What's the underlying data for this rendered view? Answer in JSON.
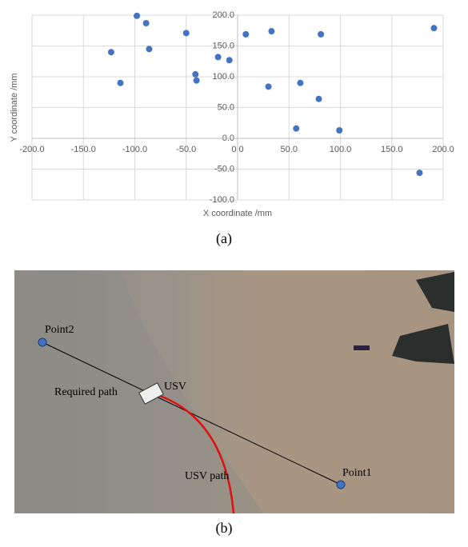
{
  "chart_data": {
    "type": "scatter",
    "x": [
      -98,
      -89,
      -50,
      -123,
      -86,
      -114,
      -41,
      -40,
      -19,
      -8,
      8,
      33,
      81,
      30,
      61,
      79,
      57,
      99,
      177,
      191
    ],
    "values": [
      199,
      187,
      171,
      140,
      145,
      90,
      104,
      94,
      132,
      127,
      169,
      174,
      169,
      84,
      90,
      64,
      16,
      13,
      -56,
      179
    ],
    "color": "#4472c4",
    "x_label": "X coordinate /mm",
    "y_label": "Y coordinate /mm",
    "xlim": [
      -200,
      200
    ],
    "ylim": [
      -100,
      200
    ],
    "xticks": [
      {
        "value": -200,
        "label": "-200.0"
      },
      {
        "value": -150,
        "label": "-150.0"
      },
      {
        "value": -100,
        "label": "-100.0"
      },
      {
        "value": -50,
        "label": "-50.0"
      },
      {
        "value": 0,
        "label": "0.0"
      },
      {
        "value": 50,
        "label": "50.0"
      },
      {
        "value": 100,
        "label": "100.0"
      },
      {
        "value": 150,
        "label": "150.0"
      },
      {
        "value": 200,
        "label": "200.0"
      }
    ],
    "yticks": [
      {
        "value": -100,
        "label": "-100.0"
      },
      {
        "value": -50,
        "label": "-50.0"
      },
      {
        "value": 0,
        "label": "0.0"
      },
      {
        "value": 50,
        "label": "50.0"
      },
      {
        "value": 100,
        "label": "100.0"
      },
      {
        "value": 150,
        "label": "150.0"
      },
      {
        "value": 200,
        "label": "200.0"
      }
    ],
    "grid": true,
    "caption": "(a)"
  },
  "photo": {
    "point2": "Point2",
    "point1": "Point1",
    "required_path": "Required path",
    "usv": "USV",
    "usv_path": "USV path",
    "caption": "(b)"
  }
}
